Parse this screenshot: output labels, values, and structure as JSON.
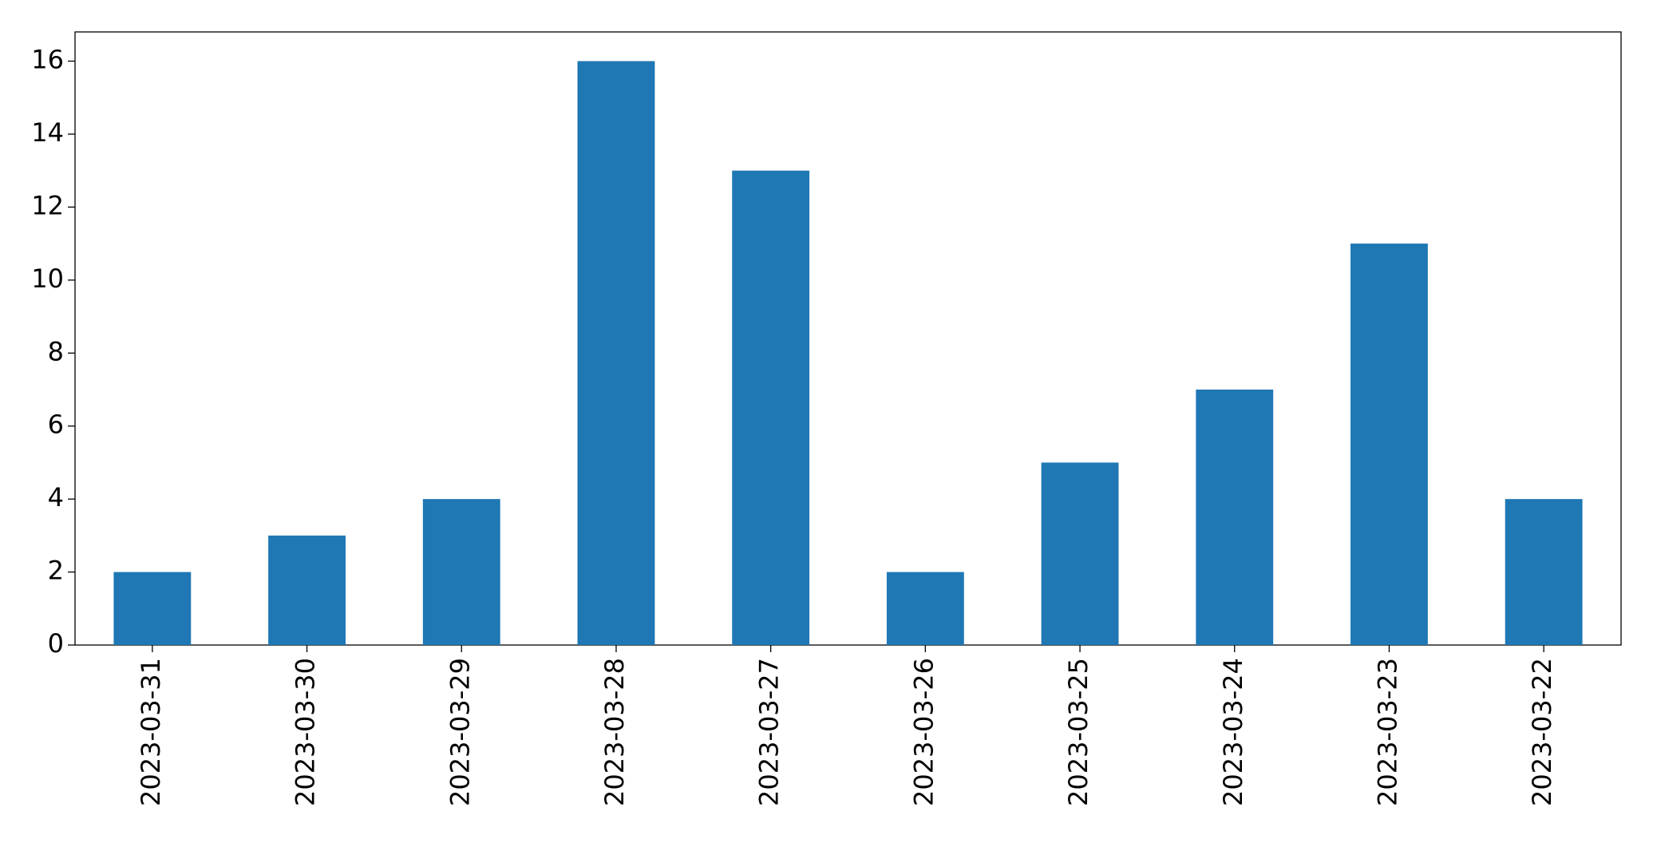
{
  "chart_data": {
    "type": "bar",
    "categories": [
      "2023-03-31",
      "2023-03-30",
      "2023-03-29",
      "2023-03-28",
      "2023-03-27",
      "2023-03-26",
      "2023-03-25",
      "2023-03-24",
      "2023-03-23",
      "2023-03-22"
    ],
    "values": [
      2,
      3,
      4,
      16,
      13,
      2,
      5,
      7,
      11,
      4
    ],
    "color": "#1f77b4",
    "ylim": [
      0,
      16.8
    ],
    "yticks": [
      0,
      2,
      4,
      6,
      8,
      10,
      12,
      14,
      16
    ],
    "grid": false
  }
}
